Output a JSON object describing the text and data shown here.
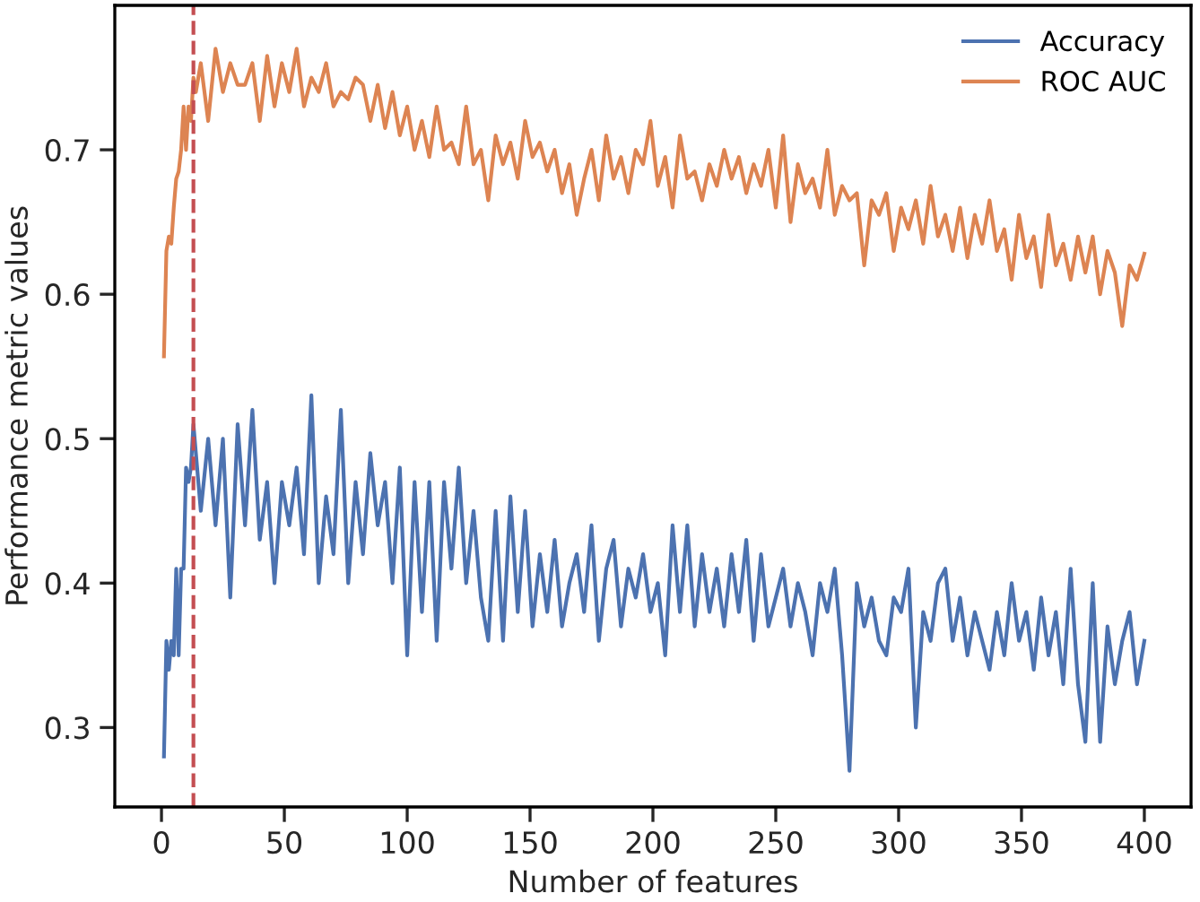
{
  "chart_data": {
    "type": "line",
    "xlabel": "Number of features",
    "ylabel": "Performance metric values",
    "x": [
      1,
      2,
      3,
      4,
      5,
      6,
      7,
      8,
      9,
      10,
      11,
      12,
      13,
      14,
      16,
      19,
      22,
      25,
      28,
      31,
      34,
      37,
      40,
      43,
      46,
      49,
      52,
      55,
      58,
      61,
      64,
      67,
      70,
      73,
      76,
      79,
      82,
      85,
      88,
      91,
      94,
      97,
      100,
      103,
      106,
      109,
      112,
      115,
      118,
      121,
      124,
      127,
      130,
      133,
      136,
      139,
      142,
      145,
      148,
      151,
      154,
      157,
      160,
      163,
      166,
      169,
      172,
      175,
      178,
      181,
      184,
      187,
      190,
      193,
      196,
      199,
      202,
      205,
      208,
      211,
      214,
      217,
      220,
      223,
      226,
      229,
      232,
      235,
      238,
      241,
      244,
      247,
      250,
      253,
      256,
      259,
      262,
      265,
      268,
      271,
      274,
      277,
      280,
      283,
      286,
      289,
      292,
      295,
      298,
      301,
      304,
      307,
      310,
      313,
      316,
      319,
      322,
      325,
      328,
      331,
      334,
      337,
      340,
      343,
      346,
      349,
      352,
      355,
      358,
      361,
      364,
      367,
      370,
      373,
      376,
      379,
      382,
      385,
      388,
      391,
      394,
      397,
      400
    ],
    "series": [
      {
        "name": "Accuracy",
        "color": "#4c72b0",
        "values": [
          0.28,
          0.36,
          0.34,
          0.36,
          0.35,
          0.41,
          0.35,
          0.41,
          0.41,
          0.48,
          0.47,
          0.48,
          0.51,
          0.49,
          0.45,
          0.5,
          0.44,
          0.5,
          0.39,
          0.51,
          0.44,
          0.52,
          0.43,
          0.47,
          0.4,
          0.47,
          0.44,
          0.48,
          0.42,
          0.53,
          0.4,
          0.46,
          0.42,
          0.52,
          0.4,
          0.47,
          0.42,
          0.49,
          0.44,
          0.47,
          0.4,
          0.48,
          0.35,
          0.47,
          0.38,
          0.47,
          0.36,
          0.47,
          0.41,
          0.48,
          0.4,
          0.45,
          0.39,
          0.36,
          0.45,
          0.36,
          0.46,
          0.38,
          0.45,
          0.37,
          0.42,
          0.38,
          0.43,
          0.37,
          0.4,
          0.42,
          0.38,
          0.44,
          0.36,
          0.41,
          0.43,
          0.37,
          0.41,
          0.39,
          0.42,
          0.38,
          0.4,
          0.35,
          0.44,
          0.38,
          0.44,
          0.37,
          0.42,
          0.38,
          0.41,
          0.37,
          0.42,
          0.38,
          0.43,
          0.36,
          0.42,
          0.37,
          0.39,
          0.41,
          0.37,
          0.4,
          0.38,
          0.35,
          0.4,
          0.38,
          0.41,
          0.35,
          0.27,
          0.4,
          0.37,
          0.39,
          0.36,
          0.35,
          0.39,
          0.38,
          0.41,
          0.3,
          0.38,
          0.36,
          0.4,
          0.41,
          0.36,
          0.39,
          0.35,
          0.38,
          0.36,
          0.34,
          0.38,
          0.35,
          0.4,
          0.36,
          0.38,
          0.34,
          0.39,
          0.35,
          0.38,
          0.33,
          0.41,
          0.33,
          0.29,
          0.4,
          0.29,
          0.37,
          0.33,
          0.36,
          0.38,
          0.33,
          0.36
        ]
      },
      {
        "name": "ROC AUC",
        "color": "#dd8452",
        "values": [
          0.557,
          0.63,
          0.64,
          0.635,
          0.66,
          0.68,
          0.685,
          0.7,
          0.73,
          0.7,
          0.73,
          0.72,
          0.75,
          0.74,
          0.76,
          0.72,
          0.77,
          0.74,
          0.76,
          0.745,
          0.745,
          0.76,
          0.72,
          0.765,
          0.73,
          0.76,
          0.74,
          0.77,
          0.73,
          0.75,
          0.74,
          0.76,
          0.73,
          0.74,
          0.735,
          0.75,
          0.745,
          0.72,
          0.745,
          0.715,
          0.74,
          0.71,
          0.73,
          0.7,
          0.72,
          0.695,
          0.73,
          0.7,
          0.705,
          0.69,
          0.73,
          0.69,
          0.7,
          0.665,
          0.71,
          0.69,
          0.705,
          0.68,
          0.72,
          0.695,
          0.705,
          0.685,
          0.7,
          0.67,
          0.69,
          0.655,
          0.68,
          0.7,
          0.665,
          0.71,
          0.68,
          0.695,
          0.67,
          0.7,
          0.69,
          0.72,
          0.675,
          0.695,
          0.66,
          0.71,
          0.68,
          0.685,
          0.665,
          0.69,
          0.675,
          0.7,
          0.68,
          0.695,
          0.67,
          0.69,
          0.675,
          0.7,
          0.66,
          0.71,
          0.65,
          0.69,
          0.67,
          0.68,
          0.66,
          0.7,
          0.655,
          0.675,
          0.665,
          0.67,
          0.62,
          0.665,
          0.655,
          0.67,
          0.63,
          0.66,
          0.645,
          0.665,
          0.635,
          0.675,
          0.64,
          0.655,
          0.63,
          0.66,
          0.625,
          0.655,
          0.635,
          0.665,
          0.63,
          0.645,
          0.61,
          0.655,
          0.625,
          0.64,
          0.605,
          0.655,
          0.62,
          0.635,
          0.61,
          0.64,
          0.615,
          0.64,
          0.6,
          0.63,
          0.615,
          0.578,
          0.62,
          0.61,
          0.628
        ]
      }
    ],
    "xlim": [
      -19,
      419
    ],
    "ylim": [
      0.245,
      0.8
    ],
    "xticks": [
      0,
      50,
      100,
      150,
      200,
      250,
      300,
      350,
      400
    ],
    "yticks": [
      0.3,
      0.4,
      0.5,
      0.6,
      0.7
    ],
    "ref_lines": [
      {
        "axis": "x",
        "value": 13,
        "color": "#c44e52",
        "line_style": "dashed"
      }
    ],
    "legend": "top right",
    "grid": false,
    "line_style": "solid",
    "marker": "none"
  }
}
